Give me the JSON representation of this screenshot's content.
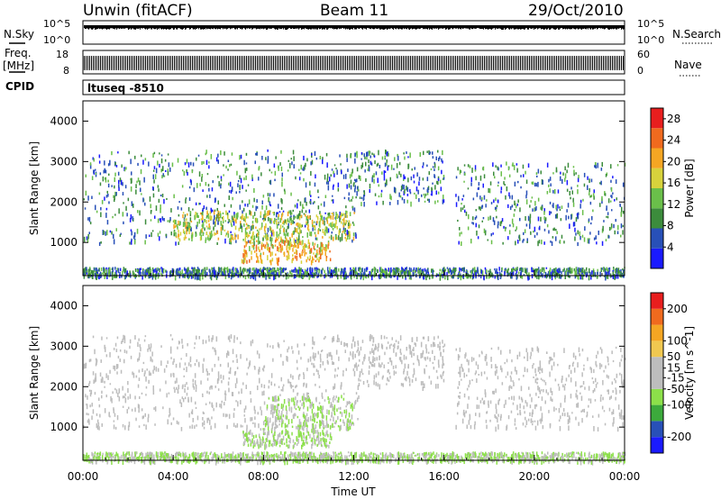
{
  "header": {
    "station": "Unwin (fitACF)",
    "beam": "Beam 11",
    "date": "29/Oct/2010"
  },
  "status_panels": {
    "nsky_label": "N.Sky",
    "nsky_top": "10^5",
    "nsky_bottom": "10^0",
    "nsearch_top": "10^5",
    "nsearch_bottom": "10^0",
    "nsearch_label": "N.Search",
    "freq_label_1": "Freq.",
    "freq_label_2": "[MHz]",
    "freq_top": "18",
    "freq_bottom": "8",
    "nave_top": "60",
    "nave_bottom": "0",
    "nave_label": "Nave",
    "cpid_label": "CPID",
    "cpid_value": "ltuseq -8510"
  },
  "colors": {
    "power_scale": [
      "#1a1aff",
      "#2850b8",
      "#3c8c3c",
      "#6abf4a",
      "#d7d23c",
      "#f5a623",
      "#f06a1e",
      "#e81e1e"
    ],
    "velocity_scale": [
      "#e81e1e",
      "#f06a1e",
      "#f5a623",
      "#f0c850",
      "#bdbdbd",
      "#bdbdbd",
      "#8ce04a",
      "#3caa3c",
      "#2850b8",
      "#1a1aff"
    ]
  },
  "chart_data": [
    {
      "type": "heatmap",
      "name": "power",
      "xlabel": "",
      "ylabel": "Slant Range [km]",
      "x_ticks": [
        "00:00",
        "04:00",
        "08:00",
        "12:00",
        "16:00",
        "20:00",
        "00:00"
      ],
      "xlim_hours": [
        0,
        24
      ],
      "ylim": [
        180,
        4500
      ],
      "y_ticks": [
        1000,
        2000,
        3000,
        4000
      ],
      "colorbar": {
        "label": "Power [dB]",
        "ticks": [
          4,
          8,
          12,
          16,
          20,
          24,
          28
        ],
        "range": [
          0,
          30
        ]
      },
      "echo_regions": [
        {
          "t_start": 0,
          "t_end": 12.2,
          "r_min": 1000,
          "r_max": 3300,
          "dominant_value": 8
        },
        {
          "t_start": 4,
          "t_end": 12,
          "r_min": 1100,
          "r_max": 1800,
          "dominant_value": 16
        },
        {
          "t_start": 7,
          "t_end": 11,
          "r_min": 550,
          "r_max": 1100,
          "dominant_value": 20
        },
        {
          "t_start": 12,
          "t_end": 16,
          "r_min": 2000,
          "r_max": 3300,
          "dominant_value": 8
        },
        {
          "t_start": 16.5,
          "t_end": 24,
          "r_min": 1000,
          "r_max": 3000,
          "dominant_value": 8
        },
        {
          "t_start": 0,
          "t_end": 24,
          "r_min": 180,
          "r_max": 400,
          "dominant_value": 8
        }
      ]
    },
    {
      "type": "heatmap",
      "name": "velocity",
      "xlabel": "Time UT",
      "ylabel": "Slant Range [km]",
      "x_ticks": [
        "00:00",
        "04:00",
        "08:00",
        "12:00",
        "16:00",
        "20:00",
        "00:00"
      ],
      "xlim_hours": [
        0,
        24
      ],
      "ylim": [
        180,
        4500
      ],
      "y_ticks": [
        1000,
        2000,
        3000,
        4000
      ],
      "colorbar": {
        "label": "Velocity [m s^-1]",
        "ticks": [
          200,
          100,
          50,
          15,
          -15,
          -50,
          -100,
          -200
        ],
        "range": [
          -250,
          250
        ]
      },
      "echo_regions": [
        {
          "t_start": 0,
          "t_end": 12.2,
          "r_min": 1000,
          "r_max": 3300,
          "dominant_value": 0
        },
        {
          "t_start": 8,
          "t_end": 12,
          "r_min": 1000,
          "r_max": 1800,
          "dominant_value": -50
        },
        {
          "t_start": 7,
          "t_end": 11,
          "r_min": 550,
          "r_max": 1000,
          "dominant_value": -50
        },
        {
          "t_start": 12,
          "t_end": 16,
          "r_min": 2000,
          "r_max": 3300,
          "dominant_value": 0
        },
        {
          "t_start": 16.5,
          "t_end": 24,
          "r_min": 1000,
          "r_max": 3000,
          "dominant_value": 0
        },
        {
          "t_start": 0,
          "t_end": 24,
          "r_min": 180,
          "r_max": 400,
          "dominant_value": -50
        }
      ]
    }
  ]
}
